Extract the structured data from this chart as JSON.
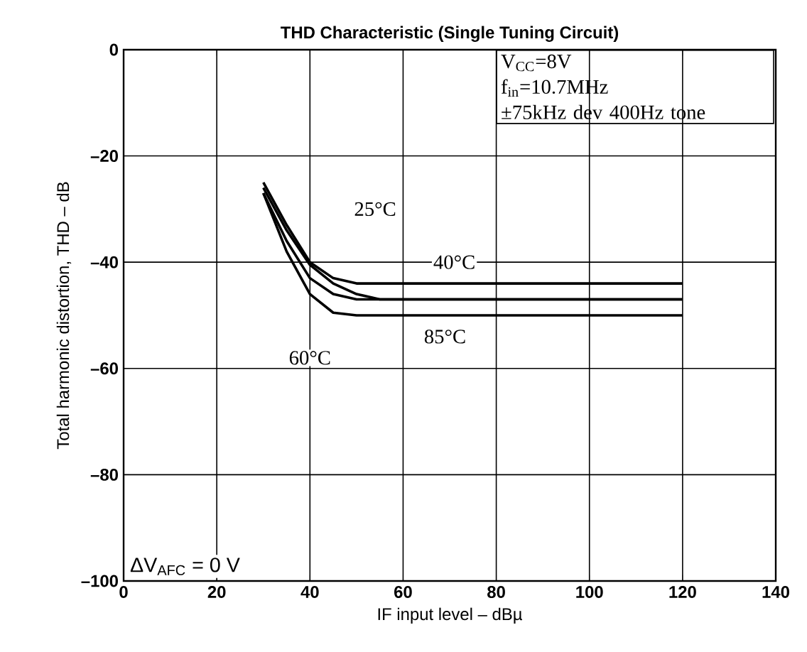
{
  "chart_data": {
    "type": "line",
    "title": "THD Characteristic (Single Tuning Circuit)",
    "xlabel": "IF input level – dBµ",
    "ylabel": "Total harmonic distortion, THD – dB",
    "xlim": [
      0,
      140
    ],
    "ylim": [
      -100,
      0
    ],
    "xticks": [
      0,
      20,
      40,
      60,
      80,
      100,
      120,
      140
    ],
    "yticks": [
      {
        "value": -100,
        "label": "–100"
      },
      {
        "value": -80,
        "label": "–80"
      },
      {
        "value": -60,
        "label": "–60"
      },
      {
        "value": -40,
        "label": "–40"
      },
      {
        "value": -20,
        "label": "–20"
      },
      0
    ],
    "grid": true,
    "marker": "none",
    "line_style": "solid",
    "x": [
      30,
      35,
      40,
      45,
      50,
      55,
      120
    ],
    "series": [
      {
        "color": "#000000",
        "values": [
          -25,
          -33,
          -40,
          -43,
          -44,
          -44,
          -44
        ]
      },
      {
        "color": "#000000",
        "values": [
          -26,
          -34,
          -40.5,
          -44,
          -46,
          -47,
          -47
        ]
      },
      {
        "color": "#000000",
        "values": [
          -27,
          -36,
          -43,
          -46,
          -47,
          -47,
          -47
        ]
      },
      {
        "color": "#000000",
        "values": [
          -27,
          -38,
          -46,
          -49.5,
          -50,
          -50,
          -50
        ]
      }
    ],
    "annotations": [
      {
        "text": "25°C",
        "x": 54,
        "y": -30
      },
      {
        "text": "40°C",
        "x": 71,
        "y": -40
      },
      {
        "text": "85°C",
        "x": 69,
        "y": -54
      },
      {
        "text": "60°C",
        "x": 40,
        "y": -58
      },
      "V$_{CC}$=8V",
      "f$_{in}$=10.7MHz",
      "±75kHz dev 400Hz tone",
      "ΔV$_{AFC}$ = 0 V"
    ]
  }
}
